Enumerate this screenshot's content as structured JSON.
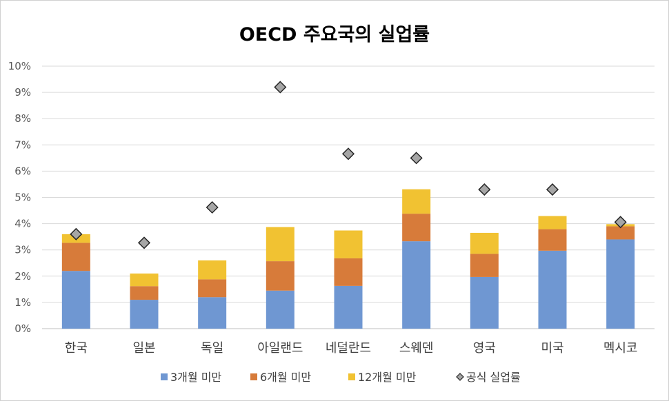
{
  "chart_data": {
    "type": "bar",
    "stacked": true,
    "title": "OECD 주요국의 실업률",
    "ylim": [
      0,
      10
    ],
    "y_ticks": [
      "0%",
      "1%",
      "2%",
      "3%",
      "4%",
      "5%",
      "6%",
      "7%",
      "8%",
      "9%",
      "10%"
    ],
    "grid": "horizontal",
    "legend_position": "bottom",
    "categories": [
      "한국",
      "일본",
      "독일",
      "아일랜드",
      "네덜란드",
      "스웨덴",
      "영국",
      "미국",
      "멕시코"
    ],
    "series": [
      {
        "name": "3개월 미만",
        "kind": "bar",
        "color": "#6f97d2",
        "values": [
          2.2,
          1.1,
          1.2,
          1.45,
          1.63,
          3.33,
          1.97,
          2.97,
          3.4
        ]
      },
      {
        "name": "6개월 미만",
        "kind": "bar",
        "color": "#d77b3a",
        "values": [
          1.07,
          0.52,
          0.68,
          1.12,
          1.05,
          1.05,
          0.88,
          0.82,
          0.5
        ]
      },
      {
        "name": "12개월 미만",
        "kind": "bar",
        "color": "#f1c232",
        "values": [
          0.33,
          0.48,
          0.72,
          1.3,
          1.06,
          0.93,
          0.8,
          0.5,
          0.08
        ]
      },
      {
        "name": "공식 실업률",
        "kind": "marker",
        "color": "#a6a6a6",
        "values": [
          3.6,
          3.27,
          4.62,
          9.2,
          6.66,
          6.5,
          5.3,
          5.3,
          4.06
        ]
      }
    ]
  }
}
